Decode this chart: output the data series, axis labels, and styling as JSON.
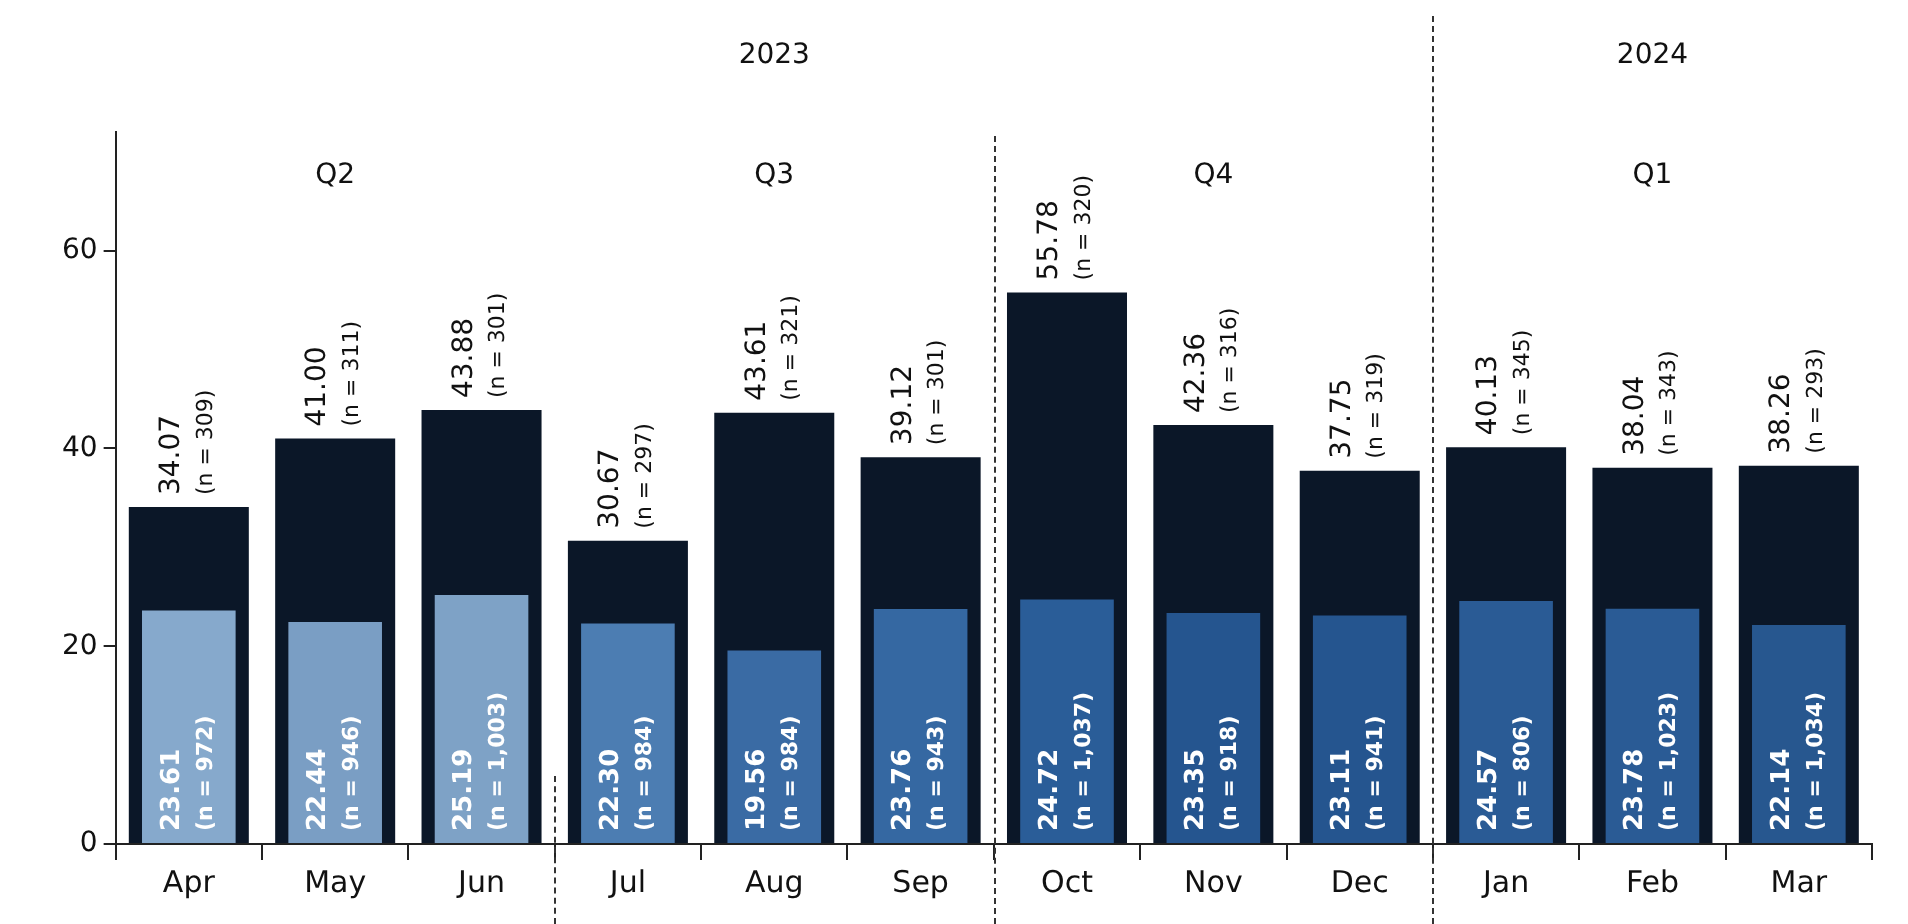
{
  "chart_data": {
    "type": "bar",
    "categories": [
      "Apr",
      "May",
      "Jun",
      "Jul",
      "Aug",
      "Sep",
      "Oct",
      "Nov",
      "Dec",
      "Jan",
      "Feb",
      "Mar"
    ],
    "series": [
      {
        "color": "#0b1728",
        "values": [
          34.07,
          41.0,
          43.88,
          30.67,
          43.61,
          39.12,
          55.78,
          42.36,
          37.75,
          40.13,
          38.04,
          38.26
        ],
        "value_labels": [
          "34.07\n(n = 309)",
          "41.00\n(n = 311)",
          "43.88\n(n = 301)",
          "30.67\n(n = 297)",
          "43.61\n(n = 321)",
          "39.12\n(n = 301)",
          "55.78\n(n = 320)",
          "42.36\n(n = 316)",
          "37.75\n(n = 319)",
          "40.13\n(n = 345)",
          "38.04\n(n = 343)",
          "38.26\n(n = 293)"
        ]
      },
      {
        "colors": [
          "#86a9cc",
          "#7a9ec4",
          "#7ea2c6",
          "#4c7db2",
          "#3a6ba4",
          "#3568a2",
          "#2a5d98",
          "#25558f",
          "#25558f",
          "#2a5b95",
          "#2a5b95",
          "#27578f"
        ],
        "values": [
          23.61,
          22.44,
          25.19,
          22.3,
          19.56,
          23.76,
          24.72,
          23.35,
          23.11,
          24.57,
          23.78,
          22.14
        ],
        "value_labels": [
          "23.61\n(n = 972)",
          "22.44\n(n = 946)",
          "25.19\n(n = 1,003)",
          "22.30\n(n = 984)",
          "19.56\n(n = 984)",
          "23.76\n(n = 943)",
          "24.72\n(n = 1,037)",
          "23.35\n(n = 918)",
          "23.11\n(n = 941)",
          "24.57\n(n = 806)",
          "23.78\n(n = 1,023)",
          "22.14\n(n = 1,034)"
        ]
      }
    ],
    "ylim": [
      0,
      72
    ],
    "yticks": [
      0,
      20,
      40,
      60
    ],
    "grid": false,
    "legend": false,
    "annotations": [
      "2023",
      "2024",
      "Q2",
      "Q3",
      "Q4",
      "Q1"
    ]
  }
}
